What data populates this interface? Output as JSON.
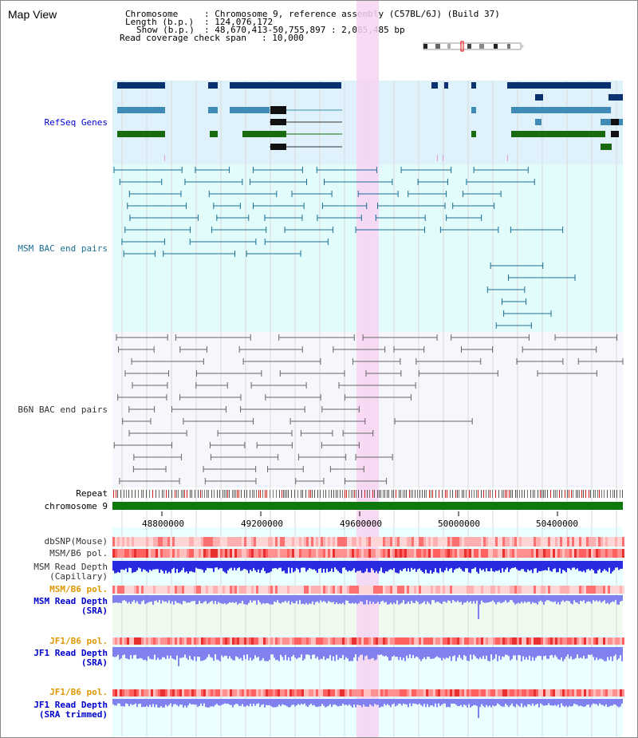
{
  "title": "Map View",
  "info": {
    "chromosome_key": "Chromosome",
    "chromosome_val": ": Chromosome 9, reference assembly (C57BL/6J) (Build 37)",
    "length_key": "Length (b.p.)",
    "length_val": ": 124,076,172",
    "show_key": "Show (b.p.)",
    "show_val": ": 48,670,413-50,755,897 : 2,085,485 bp",
    "coverage_key": "Read coverage check span",
    "coverage_val": ": 10,000"
  },
  "tracks": {
    "refseq": "RefSeq Genes",
    "msm_bac": "MSM BAC end pairs",
    "b6n_bac": "B6N BAC end pairs",
    "repeat": "Repeat",
    "chromosome": "chromosome 9",
    "dbsnp": "dbSNP(Mouse)",
    "msm_b6_pol": "MSM/B6 pol.",
    "msm_depth_cap_1": "MSM Read Depth",
    "msm_depth_cap_2": "(Capillary)",
    "msm_b6_pol2": "MSM/B6 pol.",
    "msm_depth_sra_1": "MSM Read Depth",
    "msm_depth_sra_2": "(SRA)",
    "jf1_b6_pol": "JF1/B6 pol.",
    "jf1_depth_sra_1": "JF1 Read Depth",
    "jf1_depth_sra_2": "(SRA)",
    "jf1_b6_pol2": "JF1/B6 pol.",
    "jf1_depth_trim_1": "JF1 Read Depth",
    "jf1_depth_trim_2": "(SRA trimmed)"
  },
  "axis": {
    "ticks": [
      "48800000",
      "49200000",
      "49600000",
      "50000000",
      "50400000"
    ]
  },
  "colors": {
    "refseq_dark": "#0a3270",
    "refseq_mid": "#3f8bb5",
    "refseq_green": "#1a6b10",
    "msm_bac": "#1b6f93",
    "b6n_bac": "#666666",
    "highlight": "#f7d4f2",
    "chromosome": "#0e7a0e",
    "depth_blue": "#2a2ae0",
    "depth_light": "#8080ee"
  }
}
